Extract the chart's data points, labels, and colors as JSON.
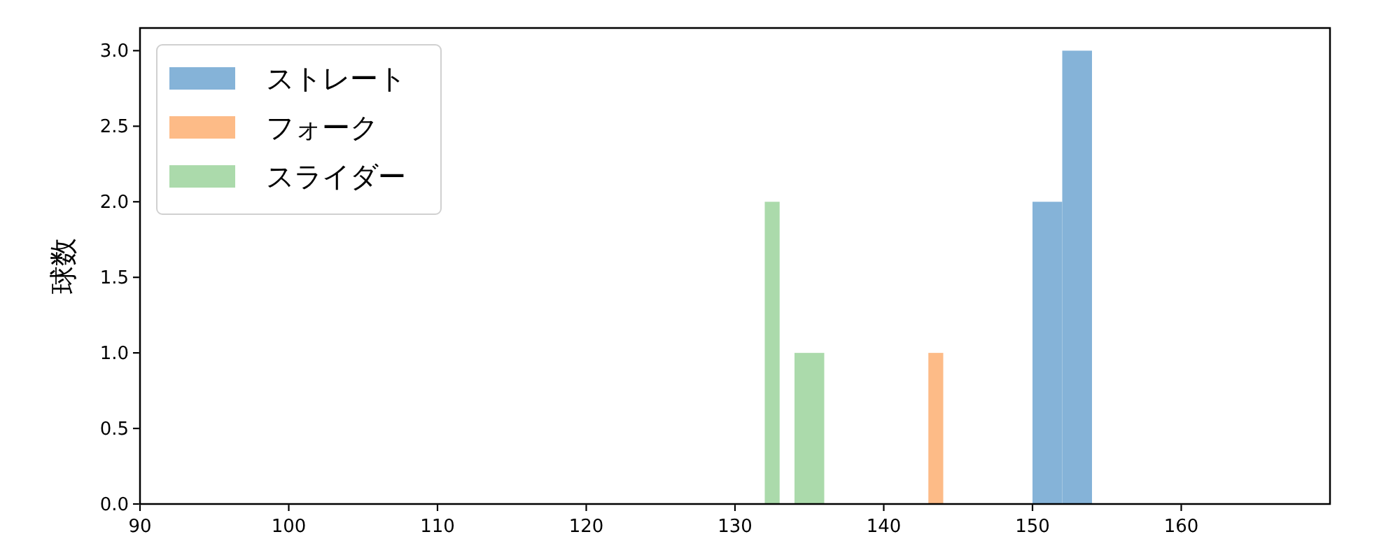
{
  "chart_data": {
    "type": "histogram",
    "ylabel": "球数",
    "bins": [
      132,
      133,
      134,
      136,
      143,
      144,
      150,
      152,
      154
    ],
    "series": [
      {
        "name": "ストレート",
        "color": "#85b3d8",
        "values": [
          0,
          0,
          0,
          0,
          0,
          0,
          2,
          3
        ]
      },
      {
        "name": "フォーク",
        "color": "#fdbb87",
        "values": [
          0,
          0,
          0,
          0,
          1,
          0,
          0,
          0
        ]
      },
      {
        "name": "スライダー",
        "color": "#abdaab",
        "values": [
          2,
          0,
          1,
          0,
          0,
          0,
          0,
          0
        ]
      }
    ],
    "xlim": [
      90,
      170
    ],
    "ylim": [
      0,
      3.15
    ],
    "xticks": [
      90,
      100,
      110,
      120,
      130,
      140,
      150,
      160
    ],
    "yticks": [
      {
        "value": 0,
        "label": "0.0"
      },
      {
        "value": 0.5,
        "label": "0.5"
      },
      {
        "value": 1,
        "label": "1.0"
      },
      {
        "value": 1.5,
        "label": "1.5"
      },
      {
        "value": 2,
        "label": "2.0"
      },
      {
        "value": 2.5,
        "label": "2.5"
      },
      {
        "value": 3,
        "label": "3.0"
      }
    ],
    "legend": "top left"
  }
}
